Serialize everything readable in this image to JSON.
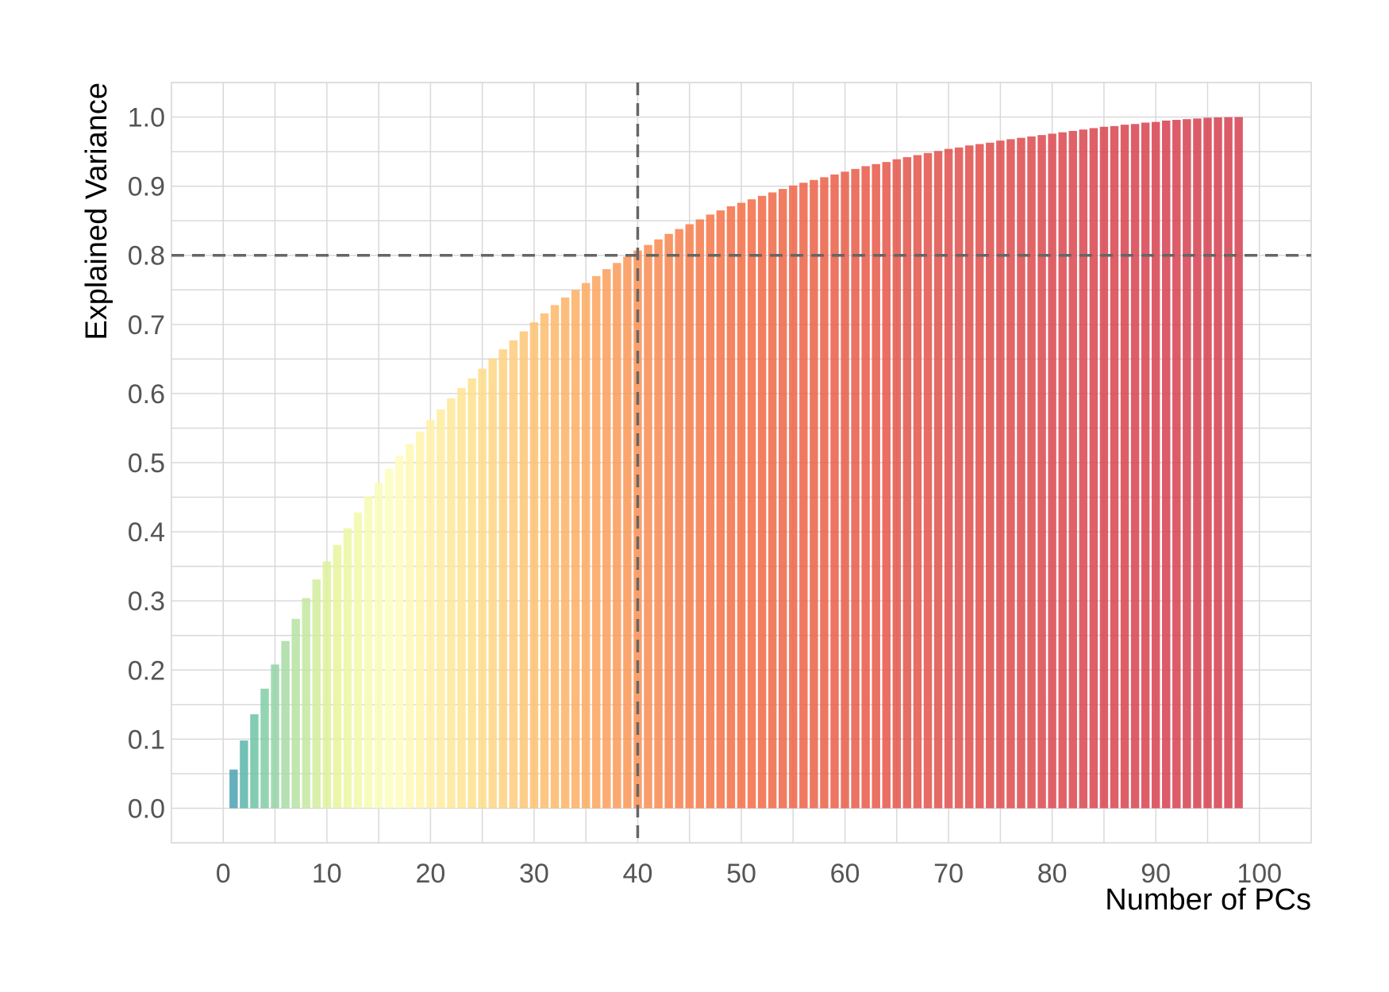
{
  "chart_data": {
    "type": "bar",
    "xlabel": "Number of PCs",
    "ylabel": "Explained Variance",
    "xlim": [
      -5,
      105
    ],
    "ylim": [
      -0.05,
      1.05
    ],
    "x_ticks": [
      0,
      10,
      20,
      30,
      40,
      50,
      60,
      70,
      80,
      90,
      100
    ],
    "y_ticks": [
      0.0,
      0.1,
      0.2,
      0.3,
      0.4,
      0.5,
      0.6,
      0.7,
      0.8,
      0.9,
      1.0
    ],
    "x_tick_labels": [
      "0",
      "10",
      "20",
      "30",
      "40",
      "50",
      "60",
      "70",
      "80",
      "90",
      "100"
    ],
    "y_tick_labels": [
      "0.0",
      "0.1",
      "0.2",
      "0.3",
      "0.4",
      "0.5",
      "0.6",
      "0.7",
      "0.8",
      "0.9",
      "1.0"
    ],
    "grid": true,
    "colormap": "Spectral_r",
    "reference_lines": {
      "horizontal_y": 0.8,
      "vertical_x": 40,
      "style": "dashed",
      "color": "#666666"
    },
    "categories": [
      1,
      2,
      3,
      4,
      5,
      6,
      7,
      8,
      9,
      10,
      11,
      12,
      13,
      14,
      15,
      16,
      17,
      18,
      19,
      20,
      21,
      22,
      23,
      24,
      25,
      26,
      27,
      28,
      29,
      30,
      31,
      32,
      33,
      34,
      35,
      36,
      37,
      38,
      39,
      40,
      41,
      42,
      43,
      44,
      45,
      46,
      47,
      48,
      49,
      50,
      51,
      52,
      53,
      54,
      55,
      56,
      57,
      58,
      59,
      60,
      61,
      62,
      63,
      64,
      65,
      66,
      67,
      68,
      69,
      70,
      71,
      72,
      73,
      74,
      75,
      76,
      77,
      78,
      79,
      80,
      81,
      82,
      83,
      84,
      85,
      86,
      87,
      88,
      89,
      90,
      91,
      92,
      93,
      94,
      95,
      96,
      97,
      98
    ],
    "values": [
      0.056,
      0.098,
      0.136,
      0.173,
      0.208,
      0.242,
      0.274,
      0.304,
      0.331,
      0.357,
      0.381,
      0.405,
      0.428,
      0.451,
      0.471,
      0.491,
      0.51,
      0.527,
      0.545,
      0.562,
      0.577,
      0.593,
      0.608,
      0.622,
      0.636,
      0.651,
      0.664,
      0.677,
      0.69,
      0.703,
      0.716,
      0.728,
      0.739,
      0.75,
      0.76,
      0.77,
      0.78,
      0.789,
      0.798,
      0.807,
      0.815,
      0.823,
      0.831,
      0.838,
      0.845,
      0.852,
      0.859,
      0.865,
      0.871,
      0.876,
      0.881,
      0.886,
      0.891,
      0.896,
      0.901,
      0.905,
      0.909,
      0.913,
      0.917,
      0.921,
      0.925,
      0.929,
      0.932,
      0.935,
      0.939,
      0.942,
      0.945,
      0.948,
      0.951,
      0.954,
      0.956,
      0.959,
      0.961,
      0.963,
      0.966,
      0.968,
      0.97,
      0.972,
      0.974,
      0.976,
      0.978,
      0.98,
      0.982,
      0.984,
      0.986,
      0.987,
      0.989,
      0.99,
      0.992,
      0.993,
      0.995,
      0.996,
      0.997,
      0.998,
      0.999,
      0.9995,
      0.9998,
      1.0
    ]
  }
}
